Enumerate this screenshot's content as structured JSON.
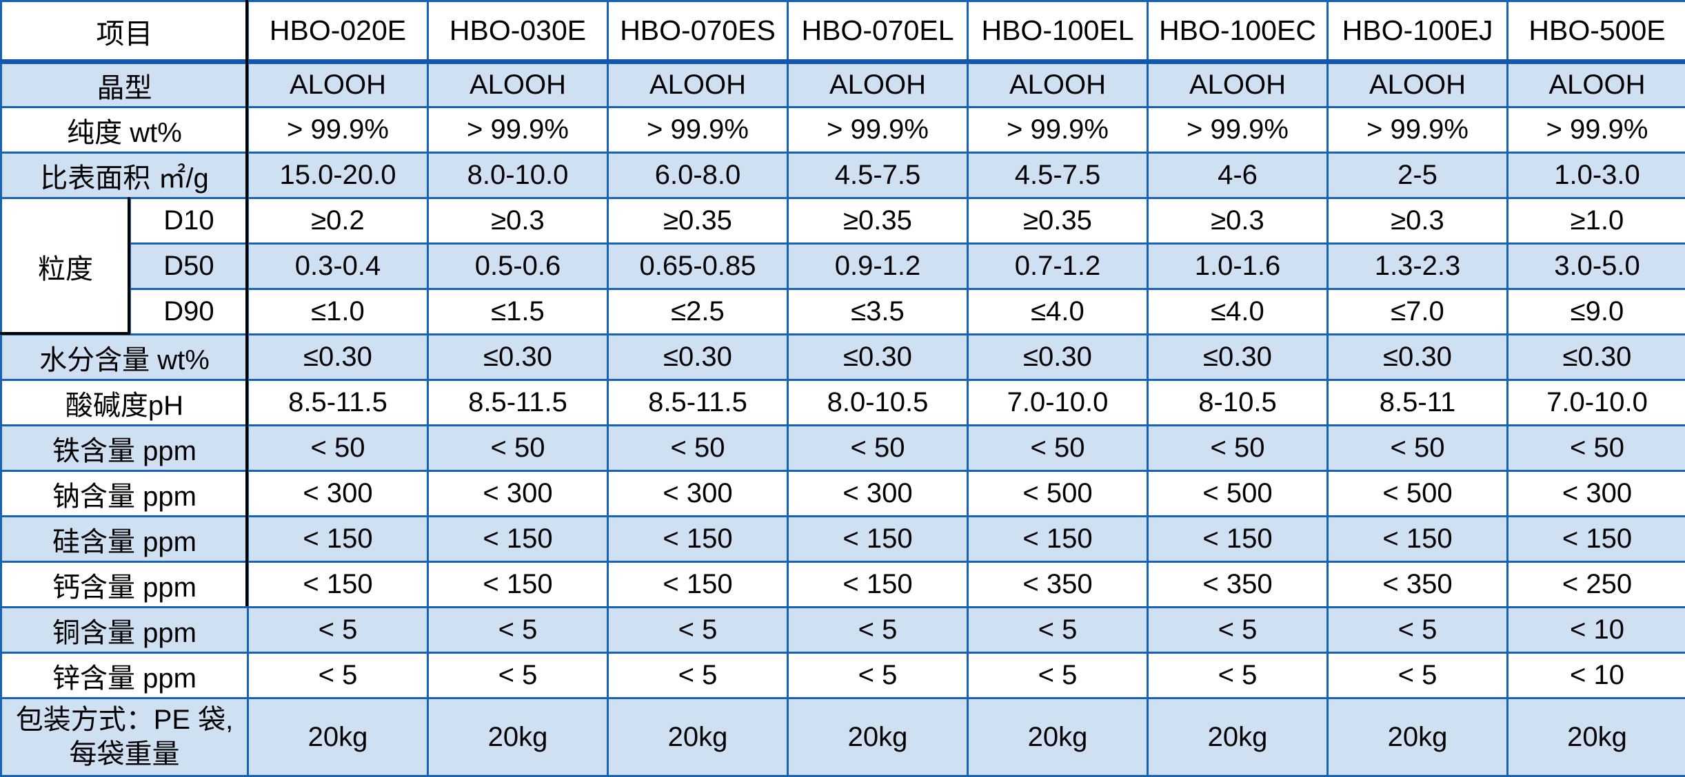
{
  "table": {
    "corner_label": "项目",
    "products": [
      "HBO-020E",
      "HBO-030E",
      "HBO-070ES",
      "HBO-070EL",
      "HBO-100EL",
      "HBO-100EC",
      "HBO-100EJ",
      "HBO-500E"
    ],
    "rows": [
      {
        "label": "晶型",
        "values": [
          "ALOOH",
          "ALOOH",
          "ALOOH",
          "ALOOH",
          "ALOOH",
          "ALOOH",
          "ALOOH",
          "ALOOH"
        ]
      },
      {
        "label": "纯度 wt%",
        "values": [
          "> 99.9%",
          "> 99.9%",
          "> 99.9%",
          "> 99.9%",
          "> 99.9%",
          "> 99.9%",
          "> 99.9%",
          "> 99.9%"
        ]
      },
      {
        "label": "比表面积 ㎡/g",
        "values": [
          "15.0-20.0",
          "8.0-10.0",
          "6.0-8.0",
          "4.5-7.5",
          "4.5-7.5",
          "4-6",
          "2-5",
          "1.0-3.0"
        ]
      },
      {
        "type": "group",
        "label": "粒度",
        "subrows": [
          {
            "label": "D10",
            "values": [
              "≥0.2",
              "≥0.3",
              "≥0.35",
              "≥0.35",
              "≥0.35",
              "≥0.3",
              "≥0.3",
              "≥1.0"
            ]
          },
          {
            "label": "D50",
            "values": [
              "0.3-0.4",
              "0.5-0.6",
              "0.65-0.85",
              "0.9-1.2",
              "0.7-1.2",
              "1.0-1.6",
              "1.3-2.3",
              "3.0-5.0"
            ]
          },
          {
            "label": "D90",
            "values": [
              "≤1.0",
              "≤1.5",
              "≤2.5",
              "≤3.5",
              "≤4.0",
              "≤4.0",
              "≤7.0",
              "≤9.0"
            ]
          }
        ]
      },
      {
        "label": "水分含量 wt%",
        "values": [
          "≤0.30",
          "≤0.30",
          "≤0.30",
          "≤0.30",
          "≤0.30",
          "≤0.30",
          "≤0.30",
          "≤0.30"
        ]
      },
      {
        "label": "酸碱度pH",
        "values": [
          "8.5-11.5",
          "8.5-11.5",
          "8.5-11.5",
          "8.0-10.5",
          "7.0-10.0",
          "8-10.5",
          "8.5-11",
          "7.0-10.0"
        ]
      },
      {
        "label": "铁含量 ppm",
        "values": [
          "< 50",
          "< 50",
          "< 50",
          "< 50",
          "< 50",
          "< 50",
          "< 50",
          "< 50"
        ]
      },
      {
        "label": "钠含量 ppm",
        "values": [
          "< 300",
          "< 300",
          "< 300",
          "< 300",
          "< 500",
          "< 500",
          "< 500",
          "< 300"
        ]
      },
      {
        "label": "硅含量 ppm",
        "values": [
          "< 150",
          "< 150",
          "< 150",
          "< 150",
          "< 150",
          "< 150",
          "< 150",
          "< 150"
        ]
      },
      {
        "label": "钙含量 ppm",
        "values": [
          "< 150",
          "< 150",
          "< 150",
          "< 150",
          "< 350",
          "< 350",
          "< 350",
          "< 250"
        ]
      },
      {
        "label": "铜含量 ppm",
        "values": [
          "< 5",
          "< 5",
          "< 5",
          "< 5",
          "< 5",
          "< 5",
          "< 5",
          "< 10"
        ]
      },
      {
        "label": "锌含量 ppm",
        "values": [
          "< 5",
          "< 5",
          "< 5",
          "< 5",
          "< 5",
          "< 5",
          "< 5",
          "< 10"
        ]
      },
      {
        "label": "包装方式：PE 袋,",
        "label2": "每袋重量",
        "values": [
          "20kg",
          "20kg",
          "20kg",
          "20kg",
          "20kg",
          "20kg",
          "20kg",
          "20kg"
        ]
      }
    ],
    "colors": {
      "stripe_blue": "#cfe0f2",
      "border_blue": "#1563b8",
      "header_rule_blue": "#1157ae",
      "accent_black_line": "#000000",
      "text": "#000000",
      "background": "#ffffff"
    }
  }
}
